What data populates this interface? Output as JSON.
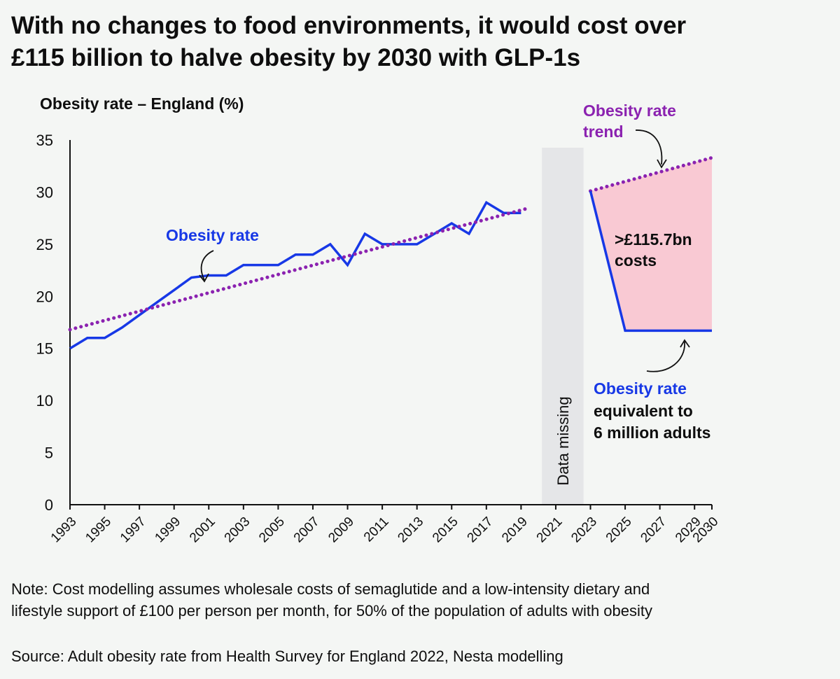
{
  "title_lines": [
    "With no changes to food environments, it would cost over",
    "£115 billion to halve obesity by 2030 with GLP-1s"
  ],
  "chart_data": {
    "type": "line",
    "ylabel": "Obesity rate – England (%)",
    "ylim": [
      0,
      35
    ],
    "yticks": [
      0,
      5,
      10,
      15,
      20,
      25,
      30,
      35
    ],
    "xlim": [
      1993,
      2030
    ],
    "xticks": [
      "1993",
      "1995",
      "1997",
      "1999",
      "2001",
      "2003",
      "2005",
      "2007",
      "2009",
      "2011",
      "2013",
      "2015",
      "2017",
      "2019",
      "2021",
      "2023",
      "2025",
      "2027",
      "2029",
      "2030"
    ],
    "series": [
      {
        "name": "Obesity rate",
        "color": "#1738e6",
        "style": "solid",
        "x": [
          1993,
          1994,
          1995,
          1996,
          1997,
          1998,
          1999,
          2000,
          2001,
          2002,
          2003,
          2004,
          2005,
          2006,
          2007,
          2008,
          2009,
          2010,
          2011,
          2012,
          2013,
          2014,
          2015,
          2016,
          2017,
          2018,
          2019
        ],
        "values": [
          15,
          16,
          16,
          17,
          18.2,
          19.4,
          20.6,
          21.8,
          22,
          22,
          23,
          23,
          23,
          24,
          24,
          25,
          23,
          26,
          25,
          25,
          25,
          26,
          27,
          26,
          29,
          28,
          28
        ]
      },
      {
        "name": "Obesity rate trend",
        "color": "#8b22b0",
        "style": "dotted",
        "segments": [
          {
            "x": [
              1993,
              2019.3
            ],
            "values": [
              16.8,
              28.4
            ]
          },
          {
            "x": [
              2023,
              2030
            ],
            "values": [
              30.1,
              33.3
            ]
          }
        ]
      },
      {
        "name": "Obesity rate equivalent to 6 million adults",
        "color": "#1738e6",
        "style": "solid",
        "x": [
          2023,
          2025,
          2030
        ],
        "values": [
          30.1,
          16.7,
          16.7
        ]
      }
    ],
    "shaded_area": {
      "x": [
        2023,
        2025,
        2030
      ],
      "upper": [
        30.1,
        31.0,
        33.3
      ],
      "lower": [
        30.1,
        16.7,
        16.7
      ],
      "color": "#f9c9d3"
    },
    "missing_band": {
      "x_from": 2020.2,
      "x_to": 2022.6,
      "label": "Data missing",
      "color": "#e5e6e8"
    },
    "annotations": {
      "obesity_rate": "Obesity rate",
      "trend": [
        "Obesity rate",
        "trend"
      ],
      "cost": [
        ">£115.7bn",
        "costs"
      ],
      "target": [
        "Obesity rate",
        "equivalent to",
        "6 million adults"
      ]
    },
    "grid": false,
    "legend": "none"
  },
  "note_lines": [
    "Note: Cost modelling assumes wholesale costs of semaglutide and a low-intensity dietary and",
    "lifestyle support of £100 per person per month, for 50% of the population of adults with obesity"
  ],
  "source": "Source: Adult obesity rate from Health Survey for England 2022, Nesta modelling"
}
